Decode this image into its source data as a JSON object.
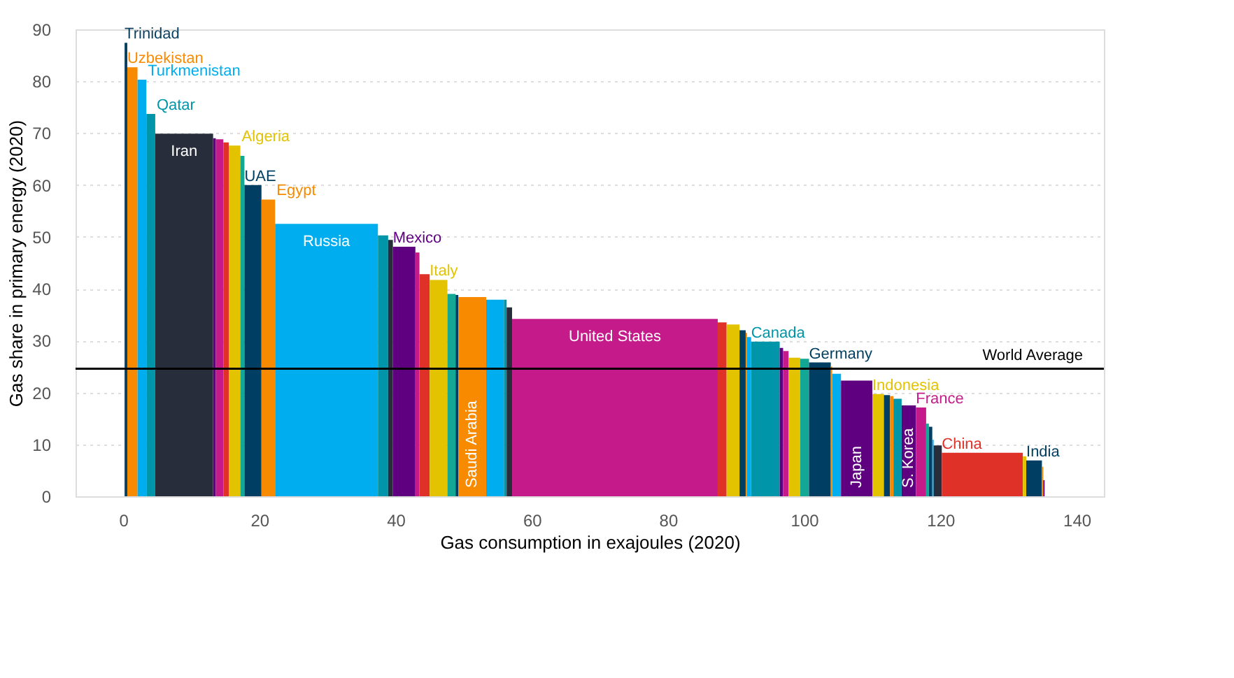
{
  "chart_data": {
    "type": "area",
    "xlabel": "Gas consumption in exajoules (2020)",
    "ylabel": "Gas share in primary energy (2020)",
    "xlim": [
      -7,
      144
    ],
    "xticks": [
      0,
      20,
      40,
      60,
      80,
      100,
      120,
      140
    ],
    "ylim": [
      0,
      90
    ],
    "yticks": [
      0,
      10,
      20,
      30,
      40,
      50,
      60,
      70,
      80,
      90
    ],
    "grid": "y",
    "ref_lines": [
      {
        "axis": "y",
        "value": 24.6,
        "label": "World Average",
        "color": "#000000"
      }
    ],
    "series": [
      {
        "name": "Trinidad",
        "color": "#0b3f5f",
        "x": [
          0.2,
          0.6
        ],
        "values": [
          87.4,
          87.4
        ]
      },
      {
        "name": "Uzbekistan",
        "color": "#f88a00",
        "x": [
          0.6,
          2.1
        ],
        "values": [
          82.7,
          82.7
        ]
      },
      {
        "name": "Turkmenistan",
        "color": "#00aeef",
        "x": [
          2.1,
          3.4
        ],
        "values": [
          80.3,
          80.3
        ]
      },
      {
        "name": "Qatar",
        "color": "#0095a8",
        "x": [
          3.4,
          4.7
        ],
        "values": [
          73.7,
          73.7
        ]
      },
      {
        "name": "Iran",
        "color": "#272d3b",
        "x": [
          4.7,
          13.2
        ],
        "values": [
          69.9,
          69.9
        ]
      },
      {
        "color": "#5e0080",
        "x": [
          13.2,
          13.6
        ],
        "values": [
          69.0,
          69.0
        ]
      },
      {
        "color": "#c51b8a",
        "x": [
          13.6,
          14.7
        ],
        "values": [
          68.8,
          68.8
        ]
      },
      {
        "color": "#e03128",
        "x": [
          14.7,
          15.5
        ],
        "values": [
          68.2,
          68.2
        ]
      },
      {
        "name": "Algeria",
        "color": "#e3c300",
        "x": [
          15.5,
          17.2
        ],
        "values": [
          67.6,
          67.6
        ]
      },
      {
        "color": "#12a895",
        "x": [
          17.2,
          17.8
        ],
        "values": [
          65.6,
          65.6
        ]
      },
      {
        "name": "UAE",
        "color": "#003f63",
        "x": [
          17.8,
          20.3
        ],
        "values": [
          60.0,
          60.0
        ]
      },
      {
        "name": "Egypt",
        "color": "#f88a00",
        "x": [
          20.3,
          22.3
        ],
        "values": [
          57.2,
          57.2
        ]
      },
      {
        "name": "Russia",
        "color": "#00aeef",
        "x": [
          22.3,
          37.4
        ],
        "values": [
          52.5,
          52.5
        ]
      },
      {
        "color": "#0095a8",
        "x": [
          37.4,
          38.9
        ],
        "values": [
          50.3,
          50.3
        ]
      },
      {
        "color": "#272d3b",
        "x": [
          38.9,
          39.6
        ],
        "values": [
          49.4,
          49.4
        ]
      },
      {
        "name": "Mexico",
        "color": "#5e0080",
        "x": [
          39.6,
          42.9
        ],
        "values": [
          48.1,
          48.1
        ]
      },
      {
        "color": "#c51b8a",
        "x": [
          42.9,
          43.5
        ],
        "values": [
          47.0,
          47.0
        ]
      },
      {
        "color": "#e03128",
        "x": [
          43.5,
          45.0
        ],
        "values": [
          42.8,
          42.8
        ]
      },
      {
        "name": "Italy",
        "color": "#e3c300",
        "x": [
          45.0,
          47.6
        ],
        "values": [
          41.7,
          41.7
        ]
      },
      {
        "color": "#12a895",
        "x": [
          47.6,
          48.8
        ],
        "values": [
          39.0,
          39.0
        ]
      },
      {
        "color": "#003f63",
        "x": [
          48.8,
          49.2
        ],
        "values": [
          38.8,
          38.8
        ]
      },
      {
        "name": "Saudi Arabia",
        "color": "#f88a00",
        "x": [
          49.2,
          53.3
        ],
        "values": [
          38.4,
          38.4
        ]
      },
      {
        "color": "#00aeef",
        "x": [
          53.3,
          55.9
        ],
        "values": [
          37.9,
          37.9
        ]
      },
      {
        "color": "#0095a8",
        "x": [
          55.9,
          56.3
        ],
        "values": [
          37.9,
          37.9
        ]
      },
      {
        "color": "#272d3b",
        "x": [
          56.3,
          57.1
        ],
        "values": [
          36.4,
          36.4
        ]
      },
      {
        "name": "United States",
        "color": "#c51b8a",
        "x": [
          57.1,
          87.3
        ],
        "values": [
          34.2,
          34.2
        ]
      },
      {
        "color": "#e03128",
        "x": [
          87.3,
          88.6
        ],
        "values": [
          33.5,
          33.5
        ]
      },
      {
        "color": "#e3c300",
        "x": [
          88.6,
          90.5
        ],
        "values": [
          33.1,
          33.1
        ]
      },
      {
        "color": "#003f63",
        "x": [
          90.5,
          91.4
        ],
        "values": [
          32.0,
          32.0
        ]
      },
      {
        "color": "#f88a00",
        "x": [
          91.4,
          91.6
        ],
        "values": [
          31.5,
          31.5
        ]
      },
      {
        "color": "#00aeef",
        "x": [
          91.6,
          92.2
        ],
        "values": [
          30.7,
          30.7
        ]
      },
      {
        "name": "Canada",
        "color": "#0095a8",
        "x": [
          92.2,
          96.4
        ],
        "values": [
          29.8,
          29.8
        ]
      },
      {
        "color": "#5e0080",
        "x": [
          96.4,
          96.9
        ],
        "values": [
          28.6,
          28.6
        ]
      },
      {
        "color": "#c51b8a",
        "x": [
          96.9,
          97.7
        ],
        "values": [
          28.0,
          28.0
        ]
      },
      {
        "color": "#e3c300",
        "x": [
          97.7,
          99.4
        ],
        "values": [
          26.7,
          26.7
        ]
      },
      {
        "color": "#12a895",
        "x": [
          99.4,
          100.7
        ],
        "values": [
          26.5,
          26.5
        ]
      },
      {
        "name": "Germany",
        "color": "#003f63",
        "x": [
          100.7,
          103.9
        ],
        "values": [
          25.8,
          25.8
        ]
      },
      {
        "color": "#f88a00",
        "x": [
          103.9,
          104.1
        ],
        "values": [
          25.0,
          25.0
        ]
      },
      {
        "color": "#00aeef",
        "x": [
          104.1,
          105.4
        ],
        "values": [
          23.6,
          23.6
        ]
      },
      {
        "name": "Japan",
        "color": "#5e0080",
        "x": [
          105.4,
          110.0
        ],
        "values": [
          22.3,
          22.3
        ]
      },
      {
        "name": "Indonesia",
        "color": "#e3c300",
        "x": [
          110.0,
          111.7
        ],
        "values": [
          19.7,
          19.7
        ]
      },
      {
        "color": "#003f63",
        "x": [
          111.7,
          112.6
        ],
        "values": [
          19.5,
          19.5
        ]
      },
      {
        "color": "#f88a00",
        "x": [
          112.6,
          113.1
        ],
        "values": [
          19.3,
          19.3
        ]
      },
      {
        "color": "#0095a8",
        "x": [
          113.1,
          114.3
        ],
        "values": [
          18.8,
          18.8
        ]
      },
      {
        "name": "S. Korea",
        "color": "#5e0080",
        "x": [
          114.3,
          116.4
        ],
        "values": [
          17.5,
          17.5
        ]
      },
      {
        "name": "France",
        "color": "#c51b8a",
        "x": [
          116.4,
          117.9
        ],
        "values": [
          17.1,
          17.1
        ]
      },
      {
        "color": "#12a895",
        "x": [
          117.9,
          118.3
        ],
        "values": [
          14.0,
          14.0
        ]
      },
      {
        "color": "#003f63",
        "x": [
          118.3,
          118.8
        ],
        "values": [
          13.4,
          13.4
        ]
      },
      {
        "color": "#00aeef",
        "x": [
          118.8,
          119.0
        ],
        "values": [
          10.9,
          10.9
        ]
      },
      {
        "color": "#272d3b",
        "x": [
          119.0,
          120.2
        ],
        "values": [
          9.8,
          9.8
        ]
      },
      {
        "name": "China",
        "color": "#e03128",
        "x": [
          120.2,
          132.1
        ],
        "values": [
          8.4,
          8.4
        ]
      },
      {
        "color": "#e3c300",
        "x": [
          132.1,
          132.6
        ],
        "values": [
          7.7,
          7.7
        ]
      },
      {
        "name": "India",
        "color": "#003f63",
        "x": [
          132.6,
          134.9
        ],
        "values": [
          6.9,
          6.9
        ]
      },
      {
        "color": "#f88a00",
        "x": [
          134.9,
          135.1
        ],
        "values": [
          5.7,
          5.7
        ]
      },
      {
        "color": "#5e0080",
        "x": [
          135.1,
          135.3
        ],
        "values": [
          3.1,
          3.1
        ]
      }
    ]
  }
}
